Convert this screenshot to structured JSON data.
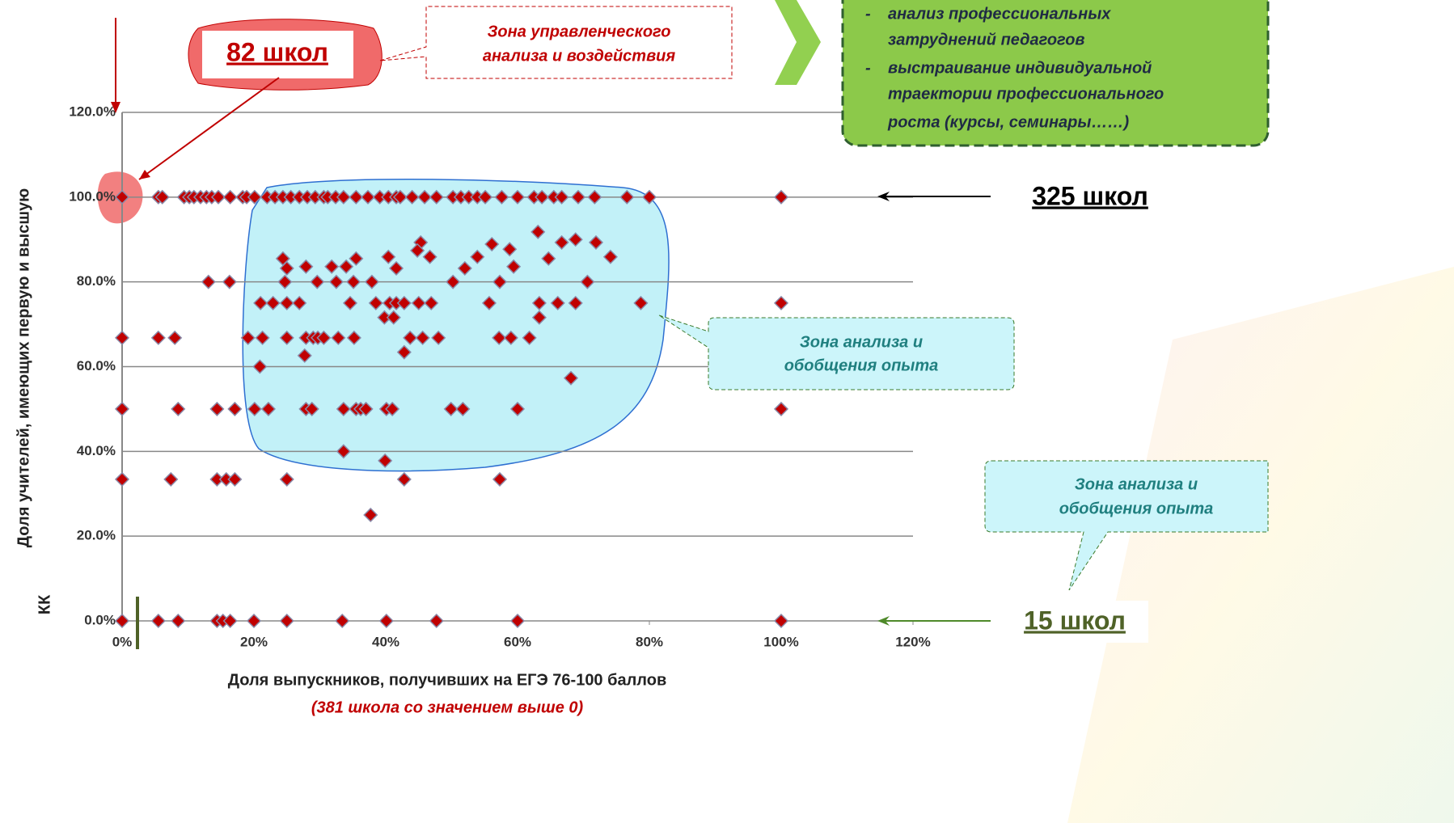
{
  "chart_data": {
    "type": "scatter",
    "xlabel": "Доля выпускников, получивших на ЕГЭ 76-100 баллов",
    "subtitle": "(381 школа со значением выше 0)",
    "ylabel": [
      "Доля учителей, имеющих первую и высшую",
      "КК"
    ],
    "color": "#c00000",
    "xlim": [
      0,
      120
    ],
    "ylim": [
      0,
      120
    ],
    "xticks": [
      {
        "value": 0,
        "label": "0%"
      },
      {
        "value": 20,
        "label": "20%"
      },
      {
        "value": 40,
        "label": "40%"
      },
      {
        "value": 60,
        "label": "60%"
      },
      {
        "value": 80,
        "label": "80%"
      },
      {
        "value": 100,
        "label": "100%"
      },
      {
        "value": 120,
        "label": "120%"
      }
    ],
    "yticks": [
      {
        "value": 0,
        "label": "0.0%"
      },
      {
        "value": 20,
        "label": "20.0%"
      },
      {
        "value": 40,
        "label": "40.0%"
      },
      {
        "value": 60,
        "label": "60.0%"
      },
      {
        "value": 80,
        "label": "80.0%"
      },
      {
        "value": 100,
        "label": "100.0%"
      },
      {
        "value": 120,
        "label": "120.0%"
      }
    ],
    "grid": true,
    "x": [
      0,
      5.5,
      6.1,
      9.4,
      10.2,
      10.9,
      11.9,
      12.8,
      13.6,
      14.6,
      16.4,
      18.3,
      18.9,
      20.1,
      22,
      23.2,
      24.4,
      25.6,
      26.9,
      28.1,
      29.3,
      30.6,
      31.2,
      32.4,
      33.6,
      35.5,
      37.3,
      39.1,
      40.4,
      41.6,
      42.2,
      44,
      45.9,
      47.7,
      50.2,
      51.4,
      52.6,
      53.9,
      55.1,
      57.6,
      60,
      62.5,
      63.7,
      65.5,
      66.7,
      69.2,
      71.7,
      76.6,
      80,
      100,
      45.3,
      44.8,
      63.1,
      66.7,
      68.8,
      71.9,
      56.1,
      58.8,
      53.9,
      74.1,
      64.7,
      24.4,
      35.5,
      40.4,
      46.7,
      25,
      27.9,
      31.8,
      34,
      41.6,
      52,
      59.4,
      13.1,
      16.3,
      24.7,
      29.6,
      32.5,
      35.1,
      37.9,
      50.2,
      57.3,
      70.6,
      21,
      22.9,
      25,
      26.9,
      34.6,
      38.5,
      40.6,
      41.6,
      42.8,
      45,
      46.9,
      55.7,
      63.3,
      66.1,
      68.8,
      78.7,
      100,
      39.8,
      41.2,
      63.3,
      0,
      5.5,
      8,
      19.1,
      21.3,
      25,
      27.9,
      29,
      29.7,
      30.6,
      32.8,
      35.2,
      43.7,
      45.6,
      48,
      57.2,
      59,
      61.8,
      27.7,
      42.8,
      68.1,
      20.9,
      0,
      8.5,
      14.4,
      17.1,
      20.1,
      22.2,
      27.9,
      28.8,
      33.6,
      35.5,
      36.2,
      37,
      40.1,
      41,
      49.9,
      51.7,
      60,
      100,
      33.6,
      39.9,
      0,
      7.4,
      14.4,
      15.8,
      17.1,
      25,
      42.8,
      57.3,
      37.7,
      0,
      5.5,
      8.5,
      14.4,
      15.3,
      16.4,
      20,
      25,
      33.4,
      40.1,
      47.7,
      60,
      100
    ],
    "values": [
      100,
      100,
      100,
      100,
      100,
      100,
      100,
      100,
      100,
      100,
      100,
      100,
      100,
      100,
      100,
      100,
      100,
      100,
      100,
      100,
      100,
      100,
      100,
      100,
      100,
      100,
      100,
      100,
      100,
      100,
      100,
      100,
      100,
      100,
      100,
      100,
      100,
      100,
      100,
      100,
      100,
      100,
      100,
      100,
      100,
      100,
      100,
      100,
      100,
      100,
      89.3,
      87.4,
      91.8,
      89.3,
      90,
      89.3,
      88.9,
      87.7,
      85.9,
      85.9,
      85.5,
      85.5,
      85.5,
      85.9,
      85.9,
      83.2,
      83.6,
      83.6,
      83.6,
      83.2,
      83.2,
      83.6,
      80,
      80,
      80,
      80,
      80,
      80,
      80,
      80,
      80,
      80,
      75,
      75,
      75,
      75,
      75,
      75,
      75,
      75,
      75,
      75,
      75,
      75,
      75,
      75,
      75,
      75,
      75,
      71.6,
      71.6,
      71.6,
      66.8,
      66.8,
      66.8,
      66.8,
      66.8,
      66.8,
      66.8,
      66.8,
      66.8,
      66.8,
      66.8,
      66.8,
      66.8,
      66.8,
      66.8,
      66.8,
      66.8,
      66.8,
      62.6,
      63.4,
      57.3,
      60,
      50,
      50,
      50,
      50,
      50,
      50,
      50,
      50,
      50,
      50,
      50,
      50,
      50,
      50,
      50,
      50,
      50,
      50,
      40,
      37.8,
      33.4,
      33.4,
      33.4,
      33.4,
      33.4,
      33.4,
      33.4,
      33.4,
      25,
      0,
      0,
      0,
      0,
      0,
      0,
      0,
      0,
      0,
      0,
      0,
      0,
      0
    ]
  },
  "annotations": {
    "count_left": "82 школ",
    "management_zone": [
      "Зона управленческого",
      "анализа и воздействия"
    ],
    "actions": [
      "анализ профессиональных",
      "затруднений педагогов",
      "выстраивание индивидуальной",
      "траектории профессионального",
      "роста (курсы, семинары……)"
    ],
    "count_top": "325 школ",
    "experience_zone_1": [
      "Зона анализа и",
      "обобщения опыта"
    ],
    "experience_zone_2": [
      "Зона анализа и",
      "обобщения опыта"
    ],
    "count_bottom": "15 школ"
  }
}
